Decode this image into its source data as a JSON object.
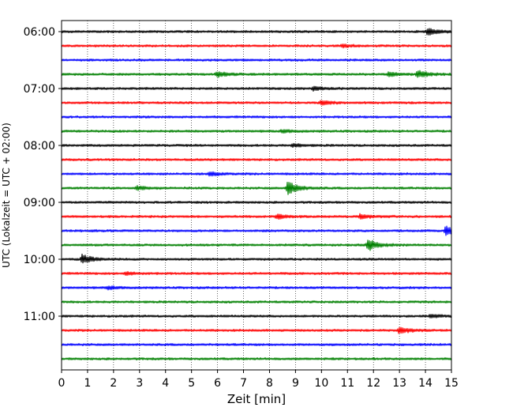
{
  "chart_data": {
    "type": "line",
    "title": "",
    "xlabel": "Zeit  [min]",
    "ylabel": "UTC (Lokalzeit = UTC + 02:00)",
    "xlim": [
      0,
      15
    ],
    "x_ticks": [
      0,
      1,
      2,
      3,
      4,
      5,
      6,
      7,
      8,
      9,
      10,
      11,
      12,
      13,
      14,
      15
    ],
    "x_tick_labels": [
      "0",
      "1",
      "2",
      "3",
      "4",
      "5",
      "6",
      "7",
      "8",
      "9",
      "10",
      "11",
      "12",
      "13",
      "14",
      "15"
    ],
    "y_tick_labels": [
      "06:00",
      "07:00",
      "08:00",
      "09:00",
      "10:00",
      "11:00"
    ],
    "grid_x": true,
    "line_colors": [
      "#000000",
      "#ff0000",
      "#0000ff",
      "#008000"
    ],
    "traces": [
      {
        "start": "06:00",
        "color": "#000000",
        "events": [
          {
            "t": 14.1,
            "amp": 0.45
          }
        ]
      },
      {
        "start": "06:15",
        "color": "#ff0000",
        "events": [
          {
            "t": 10.8,
            "amp": 0.2
          }
        ]
      },
      {
        "start": "06:30",
        "color": "#0000ff",
        "events": []
      },
      {
        "start": "06:45",
        "color": "#008000",
        "events": [
          {
            "t": 6.0,
            "amp": 0.35
          },
          {
            "t": 12.6,
            "amp": 0.3
          },
          {
            "t": 13.7,
            "amp": 0.5
          }
        ]
      },
      {
        "start": "07:00",
        "color": "#000000",
        "events": [
          {
            "t": 9.7,
            "amp": 0.25
          }
        ]
      },
      {
        "start": "07:15",
        "color": "#ff0000",
        "events": [
          {
            "t": 10.0,
            "amp": 0.3
          }
        ]
      },
      {
        "start": "07:30",
        "color": "#0000ff",
        "events": []
      },
      {
        "start": "07:45",
        "color": "#008000",
        "events": [
          {
            "t": 8.5,
            "amp": 0.2
          }
        ]
      },
      {
        "start": "08:00",
        "color": "#000000",
        "events": [
          {
            "t": 8.9,
            "amp": 0.2
          }
        ]
      },
      {
        "start": "08:15",
        "color": "#ff0000",
        "events": []
      },
      {
        "start": "08:30",
        "color": "#0000ff",
        "events": [
          {
            "t": 5.7,
            "amp": 0.25
          }
        ]
      },
      {
        "start": "08:45",
        "color": "#008000",
        "events": [
          {
            "t": 2.9,
            "amp": 0.25
          },
          {
            "t": 8.7,
            "amp": 0.9
          }
        ]
      },
      {
        "start": "09:00",
        "color": "#000000",
        "events": []
      },
      {
        "start": "09:15",
        "color": "#ff0000",
        "events": [
          {
            "t": 8.3,
            "amp": 0.3
          },
          {
            "t": 11.5,
            "amp": 0.3
          }
        ]
      },
      {
        "start": "09:30",
        "color": "#0000ff",
        "events": [
          {
            "t": 14.8,
            "amp": 0.6
          }
        ]
      },
      {
        "start": "09:45",
        "color": "#008000",
        "events": [
          {
            "t": 11.8,
            "amp": 0.8
          }
        ]
      },
      {
        "start": "10:00",
        "color": "#000000",
        "events": [
          {
            "t": 0.8,
            "amp": 0.6
          }
        ]
      },
      {
        "start": "10:15",
        "color": "#ff0000",
        "events": [
          {
            "t": 2.5,
            "amp": 0.2
          }
        ]
      },
      {
        "start": "10:30",
        "color": "#0000ff",
        "events": [
          {
            "t": 1.8,
            "amp": 0.2
          }
        ]
      },
      {
        "start": "10:45",
        "color": "#008000",
        "events": []
      },
      {
        "start": "11:00",
        "color": "#000000",
        "events": [
          {
            "t": 14.2,
            "amp": 0.2
          }
        ]
      },
      {
        "start": "11:15",
        "color": "#ff0000",
        "events": [
          {
            "t": 13.0,
            "amp": 0.45
          }
        ]
      },
      {
        "start": "11:30",
        "color": "#0000ff",
        "events": []
      },
      {
        "start": "11:45",
        "color": "#008000",
        "events": []
      }
    ]
  }
}
